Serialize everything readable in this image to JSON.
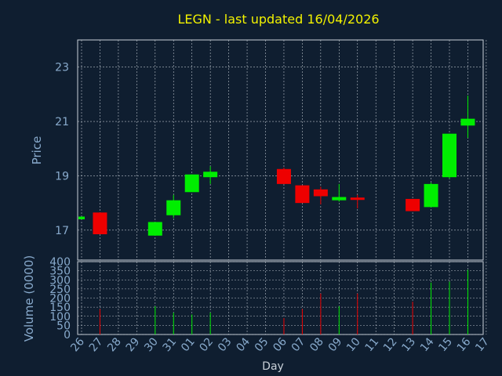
{
  "colors": {
    "background": "#0f1e30",
    "frame": "#c8d0d8",
    "grid": "#b8c0c8",
    "title": "#f2f200",
    "axis_text": "#88aacc",
    "up": "#00ee00",
    "down": "#ee0000"
  },
  "chart_data": {
    "type": "candlestick",
    "title": "LEGN - last updated 16/04/2026",
    "price_axis": {
      "label": "Price",
      "ticks": [
        17,
        19,
        21,
        23
      ],
      "ylim": [
        15.9,
        24.0
      ]
    },
    "volume_axis": {
      "label": "Volume (0000)",
      "ticks": [
        0,
        50,
        100,
        150,
        200,
        250,
        300,
        350,
        400
      ],
      "ylim": [
        0,
        400
      ]
    },
    "xlabel": "Day",
    "x_ticks": [
      "26",
      "27",
      "28",
      "29",
      "30",
      "31",
      "01",
      "02",
      "03",
      "04",
      "05",
      "06",
      "07",
      "08",
      "09",
      "10",
      "11",
      "12",
      "13",
      "14",
      "15",
      "16",
      "17"
    ],
    "candles": [
      {
        "day": "26",
        "open": 17.4,
        "close": 17.5,
        "high": 17.5,
        "low": 17.4,
        "volume": 0
      },
      {
        "day": "27",
        "open": 17.65,
        "close": 16.85,
        "high": 17.65,
        "low": 16.85,
        "volume": 140
      },
      {
        "day": "30",
        "open": 16.8,
        "close": 17.3,
        "high": 17.3,
        "low": 16.8,
        "volume": 155
      },
      {
        "day": "31",
        "open": 17.55,
        "close": 18.1,
        "high": 18.3,
        "low": 17.45,
        "volume": 120
      },
      {
        "day": "01",
        "open": 18.4,
        "close": 19.05,
        "high": 19.05,
        "low": 18.4,
        "volume": 110
      },
      {
        "day": "02",
        "open": 18.95,
        "close": 19.15,
        "high": 19.35,
        "low": 18.7,
        "volume": 120
      },
      {
        "day": "06",
        "open": 19.25,
        "close": 18.7,
        "high": 19.3,
        "low": 18.7,
        "volume": 90
      },
      {
        "day": "07",
        "open": 18.65,
        "close": 18.0,
        "high": 18.65,
        "low": 18.0,
        "volume": 140
      },
      {
        "day": "08",
        "open": 18.5,
        "close": 18.25,
        "high": 18.6,
        "low": 17.95,
        "volume": 225
      },
      {
        "day": "09",
        "open": 18.1,
        "close": 18.22,
        "high": 18.7,
        "low": 18.05,
        "volume": 155
      },
      {
        "day": "10",
        "open": 18.2,
        "close": 18.15,
        "high": 18.3,
        "low": 17.8,
        "volume": 225
      },
      {
        "day": "13",
        "open": 18.15,
        "close": 17.7,
        "high": 18.15,
        "low": 17.7,
        "volume": 180
      },
      {
        "day": "14",
        "open": 17.85,
        "close": 18.7,
        "high": 18.75,
        "low": 17.85,
        "volume": 285
      },
      {
        "day": "15",
        "open": 18.95,
        "close": 20.55,
        "high": 20.55,
        "low": 18.9,
        "volume": 290
      },
      {
        "day": "16",
        "open": 20.85,
        "close": 21.1,
        "high": 21.95,
        "low": 20.4,
        "volume": 355
      }
    ]
  }
}
